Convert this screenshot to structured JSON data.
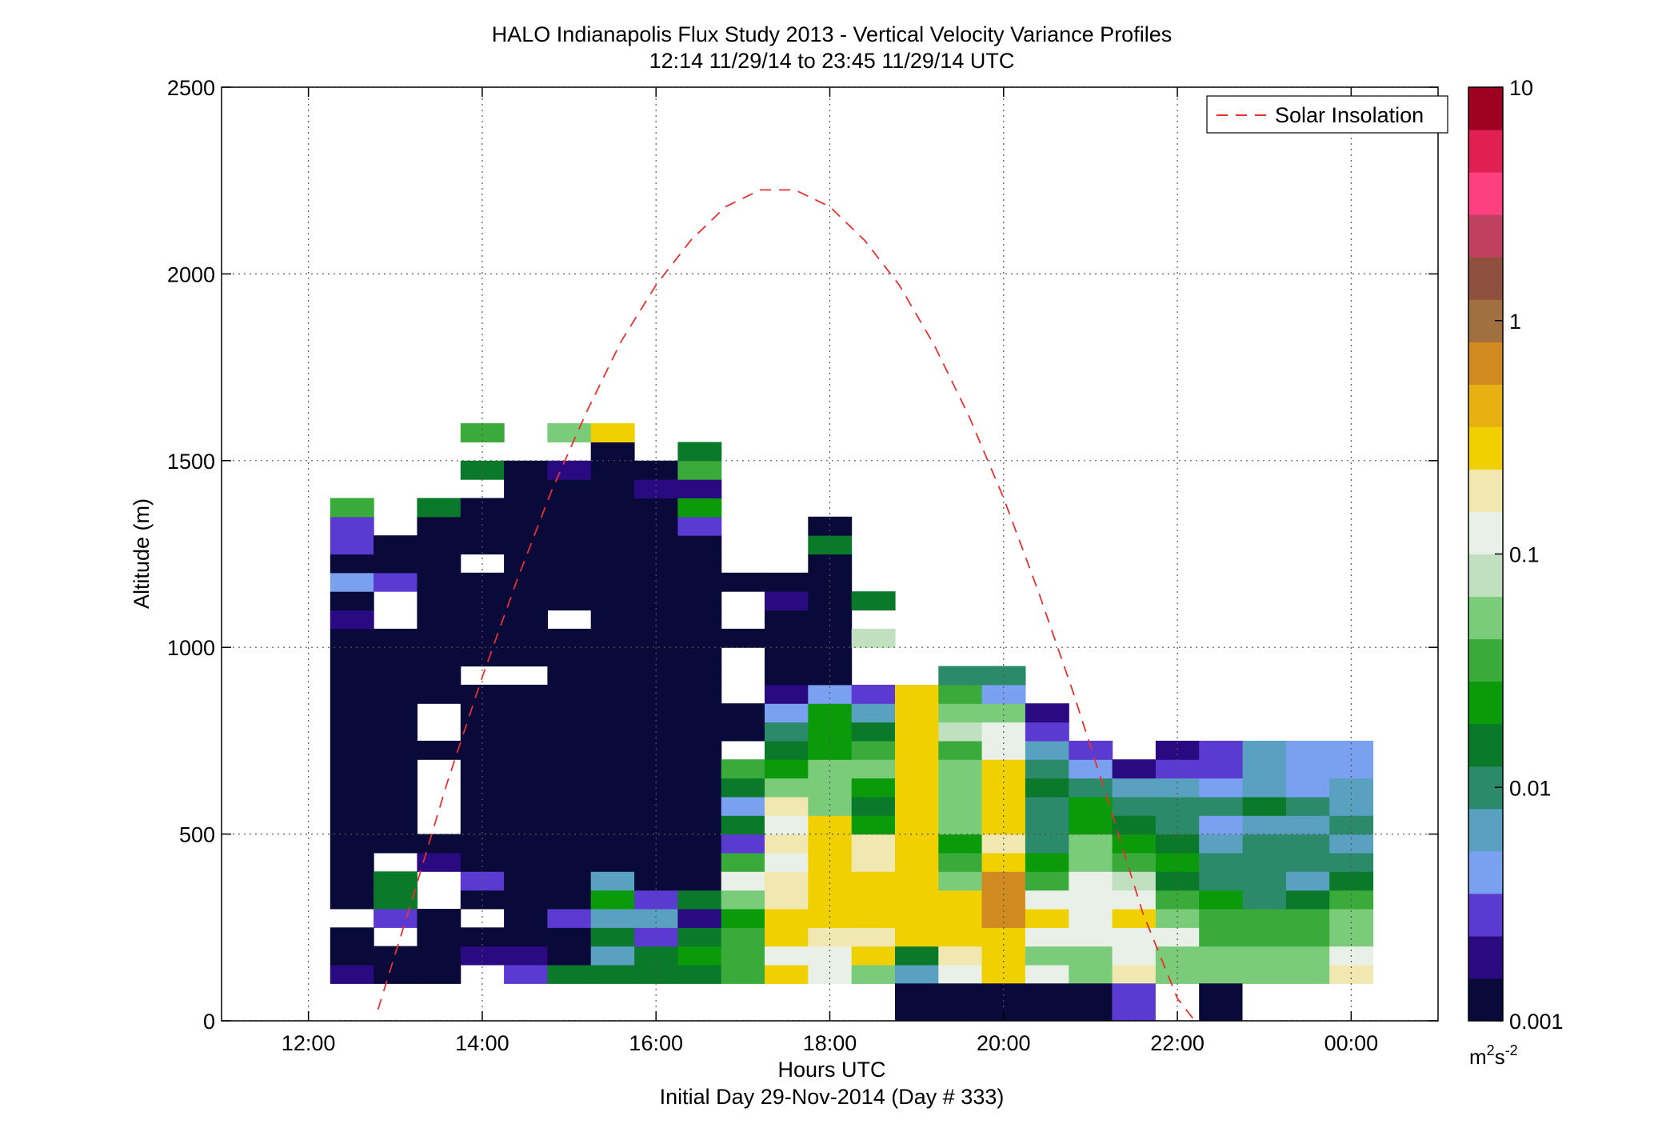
{
  "chart_data": {
    "type": "heatmap",
    "title": "HALO Indianapolis Flux Study 2013 - Vertical Velocity Variance Profiles",
    "subtitle": "12:14 11/29/14 to 23:45 11/29/14  UTC",
    "xlabel": "Hours UTC",
    "xlabel2": "Initial Day 29-Nov-2014 (Day # 333)",
    "ylabel": "Altitude (m)",
    "x_unit": "hours UTC (12 = 12:00)",
    "xlim": [
      11,
      25
    ],
    "ylim": [
      0,
      2500
    ],
    "xticks": [
      12,
      14,
      16,
      18,
      20,
      22,
      24
    ],
    "xtick_labels": [
      "12:00",
      "14:00",
      "16:00",
      "18:00",
      "20:00",
      "22:00",
      "00:00"
    ],
    "yticks": [
      0,
      500,
      1000,
      1500,
      2000,
      2500
    ],
    "ytick_labels": [
      "0",
      "500",
      "1000",
      "1500",
      "2000",
      "2500"
    ],
    "grid": true,
    "legend": {
      "position": "top-right",
      "entries": [
        "Solar Insolation"
      ]
    },
    "colorbar": {
      "scale": "log",
      "range": [
        0.001,
        10
      ],
      "ticks": [
        0.001,
        0.01,
        0.1,
        1,
        10
      ],
      "tick_labels": [
        "0.001",
        "0.01",
        "0.1",
        "1",
        "10"
      ],
      "unit_base": "m",
      "unit_sup1": "2",
      "unit_mid": "s",
      "unit_sup2": "-2",
      "colors": [
        "#0a0a3a",
        "#2a0a80",
        "#5a3ad0",
        "#7aa0f0",
        "#5aa0c0",
        "#2a8a6a",
        "#0a7a2a",
        "#0a9a0a",
        "#3aaa3a",
        "#7acc7a",
        "#c0e0c0",
        "#e8f0e8",
        "#f0e8b0",
        "#f0d000",
        "#e8b010",
        "#d08a20",
        "#a07040",
        "#905040",
        "#c04060",
        "#ff4080",
        "#e02050",
        "#a00020"
      ]
    },
    "cell_width_hours": 0.5,
    "cell_height_m": 50,
    "first_column_start_hour": 12.25,
    "first_row_bottom_m": 100,
    "note_rows": "rows[i] starts at altitude 100 + 50*i m; each value is log10 of variance; null = no data",
    "columns": [
      {
        "col": 0,
        "rows": [
          -2.8,
          -3,
          -3,
          null,
          -3,
          -3,
          -3,
          -3,
          -3,
          -3,
          -3,
          -3,
          -3,
          -3,
          -3,
          -3,
          -3,
          -3,
          -3,
          -2.7,
          -3,
          -2.4,
          -3,
          -2.5,
          -2.5,
          -1.5,
          null,
          null,
          null,
          null,
          null,
          null
        ]
      },
      {
        "col": 1,
        "rows": [
          -3,
          -3,
          null,
          -2.5,
          -1.9,
          -1.8,
          null,
          -3,
          -3,
          -3,
          -3,
          -3,
          -3,
          -3,
          -3,
          -3,
          -3,
          -3,
          -3,
          null,
          null,
          -2.5,
          -3,
          -3,
          null,
          null,
          null,
          null,
          null,
          null
        ]
      },
      {
        "col": 2,
        "rows": [
          -3,
          -3,
          -3,
          -3,
          null,
          null,
          -2.8,
          -3,
          null,
          null,
          null,
          null,
          -3,
          null,
          null,
          -3,
          -3,
          -3,
          -3,
          -3,
          -3,
          -3,
          -2.9,
          -3,
          -3,
          -1.8,
          null,
          null
        ]
      },
      {
        "col": 3,
        "rows": [
          null,
          -2.7,
          -3,
          null,
          -3,
          -2.5,
          -3,
          -3,
          -3,
          -3,
          -3,
          -3,
          -3,
          -3,
          -3,
          -3,
          null,
          -3,
          -3,
          -3,
          -3,
          -3,
          null,
          -3,
          -3,
          -3,
          null,
          -1.8,
          null,
          -1.5
        ]
      },
      {
        "col": 4,
        "rows": [
          -2.6,
          -2.7,
          -3,
          -3,
          -3,
          -3,
          -3,
          -3,
          -3,
          -3,
          -3,
          -3,
          -3,
          -3,
          -3,
          -3,
          null,
          -3,
          -3,
          -3,
          -3,
          -3,
          -3,
          -3,
          -3,
          -3,
          -3,
          -3,
          null,
          null
        ]
      },
      {
        "col": 5,
        "rows": [
          -1.8,
          -3,
          -3,
          -2.6,
          -3,
          -3,
          -3,
          -3,
          -3,
          -3,
          -3,
          -3,
          -3,
          -3,
          -3,
          -3,
          -3,
          -3,
          -3,
          null,
          -3,
          -3,
          -3,
          -3,
          -3,
          -3,
          -3,
          -2.8,
          null,
          -1.2
        ]
      },
      {
        "col": 6,
        "rows": [
          -1.8,
          -2.2,
          -1.8,
          -2.2,
          -1.6,
          -2.1,
          -3,
          -3,
          -3,
          -3,
          -3,
          -3,
          -3,
          -3,
          -3,
          -3,
          -3,
          -3,
          -3,
          -3,
          -3,
          -3,
          -3,
          -3,
          -3,
          -3,
          -3,
          -3,
          -3,
          -0.6
        ]
      },
      {
        "col": 7,
        "rows": [
          -1.8,
          -1.8,
          -2.5,
          -2.2,
          -2.5,
          -2.9,
          -3,
          -3,
          -3,
          -3,
          -3,
          -3,
          -3,
          -3,
          -3,
          -3,
          -3,
          -3,
          -3,
          -3,
          -3,
          -3,
          -3,
          -3,
          -3,
          -3,
          -2.8,
          -3,
          null,
          null
        ]
      },
      {
        "col": 8,
        "rows": [
          -1.9,
          -1.6,
          -1.9,
          -2.8,
          -1.9,
          -3,
          -3,
          -3,
          -3,
          -3,
          -3,
          -3,
          -3,
          -3,
          -3,
          -3,
          -3,
          -3,
          -3,
          -3,
          -3,
          -3,
          -3,
          -3,
          -2.6,
          -1.6,
          -2.7,
          -1.5,
          -1.8
        ]
      },
      {
        "col": 9,
        "rows": [
          -1.4,
          -1.5,
          -1.4,
          -1.7,
          -1.3,
          -1.0,
          -1.4,
          -2.5,
          -1.9,
          -2.3,
          -1.9,
          -1.4,
          null,
          -3,
          -3,
          null,
          null,
          null,
          -3,
          null,
          null,
          -3,
          null,
          null,
          null,
          null,
          null,
          null,
          null
        ]
      },
      {
        "col": 10,
        "rows": [
          -0.6,
          -1.0,
          -0.5,
          -0.6,
          -0.7,
          -0.8,
          -0.9,
          -0.7,
          -0.9,
          -0.8,
          -1.3,
          -1.6,
          -1.8,
          -2.0,
          -2.3,
          -2.8,
          -3,
          -3,
          -3,
          -3,
          -2.7,
          -3,
          null,
          null,
          null,
          null,
          null,
          null,
          null
        ]
      },
      {
        "col": 11,
        "rows": [
          -1.0,
          -1.0,
          -0.7,
          -0.5,
          -0.6,
          -0.6,
          -0.5,
          -0.6,
          -0.6,
          -1.2,
          -1.2,
          -1.3,
          -1.6,
          -1.6,
          -1.7,
          -2.3,
          -3,
          -3,
          -3,
          -3,
          -3,
          -3,
          -3,
          -1.8,
          -3,
          null,
          null,
          null,
          null,
          null
        ]
      },
      {
        "col": 12,
        "rows": [
          -1.2,
          -0.6,
          -0.7,
          -0.5,
          -0.5,
          -0.6,
          -0.7,
          -0.8,
          -1.6,
          -1.8,
          -1.6,
          -1.3,
          -1.5,
          -1.9,
          -2.1,
          -2.5,
          null,
          null,
          -1.1,
          null,
          -1.9,
          null,
          null,
          null,
          null,
          null,
          null,
          null,
          null
        ]
      },
      {
        "col": 13,
        "rows": [
          -2.2,
          -1.9,
          -0.5,
          -0.5,
          -0.6,
          -0.6,
          -0.6,
          -0.6,
          -0.5,
          -0.6,
          -0.5,
          -0.5,
          -0.5,
          -0.6,
          -0.5,
          -0.5,
          null,
          null,
          null,
          null,
          null,
          null,
          null,
          null,
          null,
          null,
          null,
          null,
          null
        ]
      },
      {
        "col": 14,
        "rows": [
          -1.0,
          -0.8,
          -0.5,
          -0.5,
          -0.5,
          -1.2,
          -1.4,
          -1.7,
          -1.2,
          -1.3,
          -1.2,
          -1.3,
          -1.5,
          -1.1,
          -1.2,
          -1.4,
          -2.0,
          null,
          null,
          null,
          null,
          null,
          null,
          null,
          null,
          null,
          null,
          null,
          null
        ]
      },
      {
        "col": 15,
        "rows": [
          -0.5,
          -0.6,
          -0.5,
          -0.2,
          -0.2,
          -0.2,
          -0.6,
          -0.8,
          -0.6,
          -0.5,
          -0.5,
          -0.5,
          -1.0,
          -0.9,
          -1.2,
          -2.3,
          -2.0,
          null,
          null,
          null,
          null,
          null,
          null,
          null,
          null,
          null,
          null,
          null,
          null
        ]
      },
      {
        "col": 16,
        "rows": [
          -0.9,
          -1.2,
          -0.9,
          -0.6,
          -0.9,
          -1.4,
          -1.6,
          -2.0,
          -2.0,
          -2.0,
          -1.9,
          -2.0,
          -2.2,
          -2.5,
          -2.8,
          null,
          null,
          null,
          null,
          null,
          null,
          null,
          null,
          null,
          null,
          null,
          null,
          null,
          null
        ]
      },
      {
        "col": 17,
        "rows": [
          -1.3,
          -1.3,
          -0.9,
          -0.9,
          -1.0,
          -0.9,
          -1.3,
          -1.2,
          -1.6,
          -1.6,
          -2.0,
          -2.4,
          -2.5,
          null,
          null,
          null,
          null,
          null,
          null,
          null,
          null,
          null,
          null,
          null,
          null,
          null,
          null,
          null,
          null
        ]
      },
      {
        "col": 18,
        "rows": [
          -0.7,
          -0.9,
          -0.9,
          -0.5,
          -0.9,
          -1.1,
          -1.4,
          -1.6,
          -1.8,
          -2.0,
          -2.2,
          -2.8,
          null,
          null,
          null,
          null,
          null,
          null,
          null,
          null,
          null,
          null,
          null,
          null,
          null,
          null,
          null,
          null,
          null
        ]
      },
      {
        "col": 19,
        "rows": [
          -1.2,
          -1.2,
          -0.9,
          -1.3,
          -1.4,
          -1.8,
          -1.6,
          -1.8,
          -2.0,
          -2.0,
          -2.2,
          -2.6,
          -2.7,
          null,
          null,
          null,
          null,
          null,
          null,
          null,
          null,
          null,
          null,
          null,
          null,
          null,
          null,
          null,
          null
        ]
      },
      {
        "col": 20,
        "rows": [
          -1.3,
          -1.3,
          -1.5,
          -1.4,
          -1.6,
          -2.0,
          -2.0,
          -2.2,
          -2.3,
          -2.0,
          -2.4,
          -2.5,
          -2.6,
          null,
          null,
          null,
          null,
          null,
          null,
          null,
          null,
          null,
          null,
          null,
          null,
          null,
          null,
          null,
          null
        ]
      },
      {
        "col": 21,
        "rows": [
          -1.2,
          -1.3,
          -1.4,
          -1.5,
          -2.0,
          -2.0,
          -2.0,
          -2.0,
          -2.2,
          -1.9,
          -2.2,
          -2.2,
          -2.2,
          null,
          null,
          null,
          null,
          null,
          null,
          null,
          null,
          null,
          null,
          null,
          null,
          null,
          null,
          null,
          null
        ]
      },
      {
        "col": 22,
        "rows": [
          -1.3,
          -1.3,
          -1.5,
          -1.4,
          -1.8,
          -2.2,
          -2.0,
          -2.0,
          -2.2,
          -2.0,
          -2.3,
          -2.3,
          -2.3,
          null,
          null,
          null,
          null,
          null,
          null,
          null,
          null,
          null,
          null,
          null,
          null,
          null,
          null,
          null,
          null
        ]
      },
      {
        "col": 23,
        "rows": [
          -0.8,
          -1.0,
          -1.3,
          -1.2,
          -1.4,
          -1.8,
          -2.0,
          -2.2,
          -2.0,
          -2.2,
          -2.2,
          -2.3,
          -2.3,
          null,
          null,
          null,
          null,
          null,
          null,
          null,
          null,
          null,
          null,
          null,
          null,
          null,
          null,
          null,
          null
        ]
      }
    ],
    "bottom_strip": {
      "altitude_range_m": [
        0,
        100
      ],
      "segments_hours": [
        [
          18.75,
          21.25
        ],
        [
          21.25,
          21.75
        ],
        [
          22.25,
          22.75
        ]
      ],
      "segment_values": [
        -3,
        -2.5,
        -3
      ]
    },
    "solar_insolation": {
      "name": "Solar Insolation",
      "color": "#e83030",
      "x": [
        12.8,
        13.2,
        13.6,
        14.0,
        14.4,
        14.8,
        15.2,
        15.6,
        16.0,
        16.4,
        16.8,
        17.2,
        17.6,
        18.0,
        18.4,
        18.8,
        19.2,
        19.6,
        20.0,
        20.4,
        20.8,
        21.2,
        21.6,
        22.0,
        22.2
      ],
      "y": [
        30,
        330,
        640,
        920,
        1180,
        1420,
        1630,
        1820,
        1970,
        2090,
        2180,
        2225,
        2225,
        2180,
        2090,
        1970,
        1810,
        1620,
        1400,
        1150,
        880,
        590,
        290,
        60,
        0
      ]
    }
  }
}
